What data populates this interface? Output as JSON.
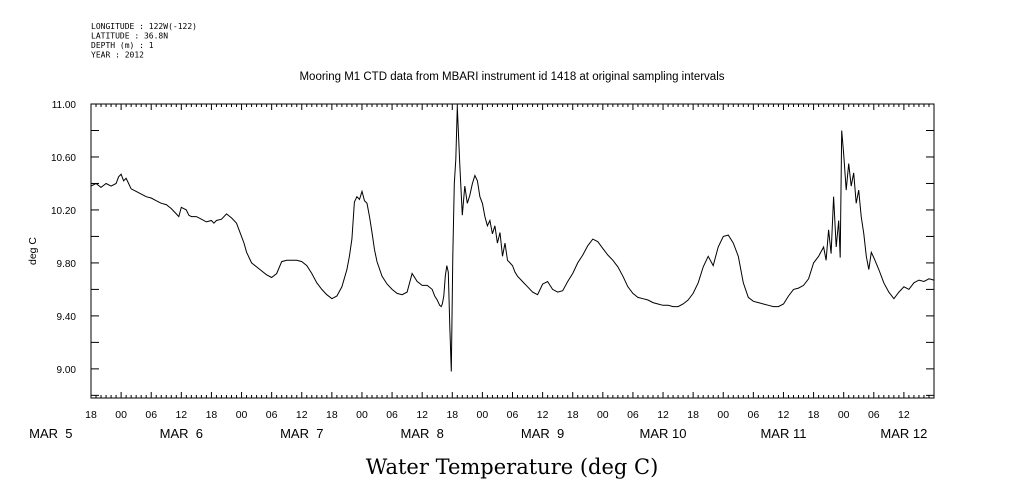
{
  "header": {
    "meta_lines": [
      "LONGITUDE : 122W(-122)",
      "LATITUDE : 36.8N",
      "DEPTH (m) : 1",
      "YEAR : 2012"
    ],
    "title": "Mooring M1 CTD data from MBARI instrument id 1418 at original sampling intervals"
  },
  "chart_data": {
    "type": "line",
    "title": "Mooring M1 CTD data from MBARI instrument id 1418 at original sampling intervals",
    "xlabel": "Water Temperature (deg C)",
    "ylabel": "deg C",
    "ylim": [
      8.78,
      11.0
    ],
    "ytick_values": [
      9.0,
      9.4,
      9.8,
      10.2,
      10.6,
      11.0
    ],
    "ytick_labels": [
      "9.00",
      "9.40",
      "9.80",
      "10.20",
      "10.60",
      "11.00"
    ],
    "x_unit": "hours since MAR 4 2012 00:00",
    "xlim": [
      18,
      186
    ],
    "x_hour_ticks": [
      {
        "h": 18,
        "label": "18"
      },
      {
        "h": 24,
        "label": "00"
      },
      {
        "h": 30,
        "label": "06"
      },
      {
        "h": 36,
        "label": "12"
      },
      {
        "h": 42,
        "label": "18"
      },
      {
        "h": 48,
        "label": "00"
      },
      {
        "h": 54,
        "label": "06"
      },
      {
        "h": 60,
        "label": "12"
      },
      {
        "h": 66,
        "label": "18"
      },
      {
        "h": 72,
        "label": "00"
      },
      {
        "h": 78,
        "label": "06"
      },
      {
        "h": 84,
        "label": "12"
      },
      {
        "h": 90,
        "label": "18"
      },
      {
        "h": 96,
        "label": "00"
      },
      {
        "h": 102,
        "label": "06"
      },
      {
        "h": 108,
        "label": "12"
      },
      {
        "h": 114,
        "label": "18"
      },
      {
        "h": 120,
        "label": "00"
      },
      {
        "h": 126,
        "label": "06"
      },
      {
        "h": 132,
        "label": "12"
      },
      {
        "h": 138,
        "label": "18"
      },
      {
        "h": 144,
        "label": "00"
      },
      {
        "h": 150,
        "label": "06"
      },
      {
        "h": 156,
        "label": "12"
      },
      {
        "h": 162,
        "label": "18"
      },
      {
        "h": 168,
        "label": "00"
      },
      {
        "h": 174,
        "label": "06"
      },
      {
        "h": 180,
        "label": "12"
      }
    ],
    "x_day_labels": [
      {
        "h": 10,
        "label": "MAR  5"
      },
      {
        "h": 36,
        "label": "MAR  6"
      },
      {
        "h": 60,
        "label": "MAR  7"
      },
      {
        "h": 84,
        "label": "MAR  8"
      },
      {
        "h": 108,
        "label": "MAR  9"
      },
      {
        "h": 132,
        "label": "MAR 10"
      },
      {
        "h": 156,
        "label": "MAR 11"
      },
      {
        "h": 180,
        "label": "MAR 12"
      }
    ],
    "series": [
      {
        "x": [
          18,
          19,
          20,
          21,
          22,
          23,
          23.5,
          24,
          24.5,
          25,
          25.5,
          26,
          27,
          28,
          29,
          30,
          31,
          32,
          33,
          34,
          35,
          35.5,
          36,
          37,
          37.5,
          38,
          39,
          40,
          41,
          42,
          42.5,
          43,
          44,
          45,
          46,
          47,
          48,
          48.5,
          49,
          50,
          51,
          52,
          53,
          54,
          55,
          56,
          57,
          58,
          59,
          60,
          61,
          62,
          63,
          64,
          65,
          66,
          67,
          68,
          69,
          69.5,
          70,
          70.5,
          71,
          71.5,
          72,
          72.5,
          73,
          73.5,
          74,
          74.5,
          75,
          76,
          77,
          78,
          79,
          80,
          81,
          82,
          83,
          84,
          85,
          86,
          86.5,
          87,
          87.5,
          87.8,
          88,
          88.3,
          88.6,
          88.9,
          89.2,
          89.5,
          89.8,
          90.1,
          90.4,
          90.7,
          91,
          91.5,
          92,
          92.5,
          93,
          93.5,
          94,
          94.5,
          95,
          95.5,
          96,
          96.5,
          97,
          97.5,
          98,
          98.5,
          99,
          99.5,
          100,
          100.5,
          101,
          101.5,
          102,
          102.5,
          103,
          104,
          105,
          106,
          107,
          108,
          109,
          110,
          111,
          112,
          113,
          114,
          115,
          116,
          117,
          118,
          119,
          120,
          121,
          122,
          123,
          124,
          125,
          126,
          127,
          128,
          129,
          130,
          131,
          132,
          133,
          134,
          135,
          136,
          137,
          138,
          139,
          140,
          141,
          142,
          143,
          144,
          145,
          146,
          147,
          148,
          149,
          150,
          151,
          152,
          153,
          154,
          155,
          156,
          157,
          158,
          159,
          160,
          161,
          162,
          163,
          164,
          164.5,
          165,
          165.5,
          166,
          166.5,
          167,
          167.3,
          167.6,
          168,
          168.5,
          169,
          169.5,
          170,
          170.5,
          171,
          171.5,
          172,
          172.5,
          173,
          173.5,
          174,
          175,
          176,
          177,
          178,
          179,
          180,
          181,
          182,
          183,
          184,
          185,
          186
        ],
        "y": [
          10.38,
          10.4,
          10.37,
          10.4,
          10.38,
          10.4,
          10.45,
          10.47,
          10.42,
          10.44,
          10.4,
          10.36,
          10.34,
          10.32,
          10.3,
          10.29,
          10.27,
          10.25,
          10.24,
          10.21,
          10.17,
          10.15,
          10.22,
          10.2,
          10.16,
          10.15,
          10.15,
          10.13,
          10.11,
          10.12,
          10.1,
          10.12,
          10.13,
          10.17,
          10.14,
          10.1,
          10.0,
          9.95,
          9.88,
          9.8,
          9.77,
          9.74,
          9.71,
          9.69,
          9.72,
          9.81,
          9.82,
          9.82,
          9.82,
          9.81,
          9.78,
          9.72,
          9.65,
          9.6,
          9.56,
          9.53,
          9.55,
          9.62,
          9.75,
          9.85,
          9.98,
          10.26,
          10.3,
          10.28,
          10.34,
          10.27,
          10.25,
          10.15,
          10.03,
          9.9,
          9.81,
          9.7,
          9.64,
          9.6,
          9.57,
          9.56,
          9.58,
          9.72,
          9.66,
          9.63,
          9.63,
          9.6,
          9.55,
          9.52,
          9.48,
          9.47,
          9.49,
          9.55,
          9.7,
          9.78,
          9.73,
          9.32,
          8.98,
          9.85,
          10.4,
          10.58,
          10.98,
          10.54,
          10.16,
          10.38,
          10.25,
          10.31,
          10.4,
          10.46,
          10.42,
          10.3,
          10.25,
          10.15,
          10.08,
          10.12,
          10.02,
          10.08,
          9.95,
          10.03,
          9.85,
          9.95,
          9.82,
          9.8,
          9.78,
          9.73,
          9.7,
          9.66,
          9.62,
          9.58,
          9.56,
          9.64,
          9.66,
          9.6,
          9.58,
          9.59,
          9.66,
          9.72,
          9.8,
          9.86,
          9.93,
          9.98,
          9.96,
          9.91,
          9.86,
          9.82,
          9.77,
          9.7,
          9.62,
          9.57,
          9.54,
          9.53,
          9.52,
          9.5,
          9.49,
          9.48,
          9.48,
          9.47,
          9.47,
          9.49,
          9.52,
          9.57,
          9.65,
          9.77,
          9.85,
          9.78,
          9.92,
          10.0,
          10.01,
          9.95,
          9.85,
          9.65,
          9.54,
          9.51,
          9.5,
          9.49,
          9.48,
          9.47,
          9.47,
          9.49,
          9.55,
          9.6,
          9.61,
          9.63,
          9.68,
          9.8,
          9.85,
          9.92,
          9.82,
          10.05,
          9.87,
          10.3,
          9.92,
          10.12,
          9.84,
          10.8,
          10.62,
          10.35,
          10.55,
          10.38,
          10.48,
          10.25,
          10.35,
          10.15,
          10.02,
          9.85,
          9.75,
          9.88,
          9.84,
          9.75,
          9.65,
          9.58,
          9.53,
          9.58,
          9.62,
          9.6,
          9.65,
          9.67,
          9.66,
          9.68,
          9.67
        ]
      }
    ]
  }
}
